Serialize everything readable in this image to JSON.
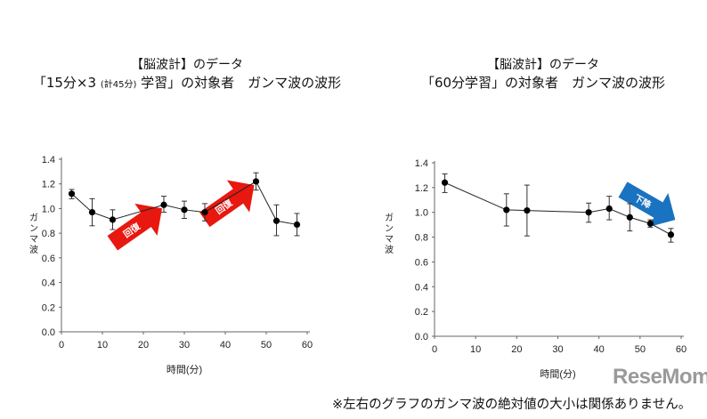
{
  "chart_data": [
    {
      "type": "line",
      "title_line1": "【脳波計】のデータ",
      "title_line2a": "「15分×3",
      "title_line2b": "(計45分)",
      "title_line2c": "学習」の対象者　ガンマ波の波形",
      "xlabel": "時間(分)",
      "ylabel": "ガンマ波",
      "xlim": [
        0,
        60
      ],
      "ylim": [
        0,
        1.4
      ],
      "xticks": [
        0,
        10,
        20,
        30,
        40,
        50,
        60
      ],
      "yticks": [
        "0.0",
        "0.2",
        "0.4",
        "0.6",
        "0.8",
        "1.0",
        "1.2",
        "1.4"
      ],
      "x": [
        2.5,
        7.5,
        12.5,
        25,
        30,
        35,
        47.5,
        52.5,
        57.5
      ],
      "y": [
        1.12,
        0.97,
        0.91,
        1.03,
        0.99,
        0.97,
        1.22,
        0.9,
        0.87
      ],
      "err_low": [
        1.08,
        0.86,
        0.83,
        0.97,
        0.92,
        0.9,
        1.15,
        0.78,
        0.78
      ],
      "err_high": [
        1.155,
        1.08,
        0.99,
        1.1,
        1.06,
        1.04,
        1.29,
        1.03,
        0.96
      ],
      "annotations": [
        {
          "text": "回復",
          "color": "#e8170f"
        },
        {
          "text": "回復",
          "color": "#e8170f"
        }
      ]
    },
    {
      "type": "line",
      "title_line1": "【脳波計】のデータ",
      "title_line2": "「60分学習」の対象者　ガンマ波の波形",
      "xlabel": "時間(分)",
      "ylabel": "ガンマ波",
      "xlim": [
        0,
        60
      ],
      "ylim": [
        0,
        1.4
      ],
      "xticks": [
        0,
        10,
        20,
        30,
        40,
        50,
        60
      ],
      "yticks": [
        "0.0",
        "0.2",
        "0.4",
        "0.6",
        "0.8",
        "1.0",
        "1.2",
        "1.4"
      ],
      "x": [
        2.5,
        17.5,
        22.5,
        37.5,
        42.5,
        47.5,
        52.5,
        57.5
      ],
      "y": [
        1.24,
        1.02,
        1.015,
        1.0,
        1.03,
        0.96,
        0.91,
        0.82
      ],
      "err_low": [
        1.16,
        0.89,
        0.81,
        0.92,
        0.94,
        0.85,
        0.88,
        0.76
      ],
      "err_high": [
        1.31,
        1.15,
        1.22,
        1.075,
        1.13,
        1.07,
        0.94,
        0.87
      ],
      "annotations": [
        {
          "text": "下降",
          "color": "#1a73c0"
        }
      ]
    }
  ],
  "footnote": "※左右のグラフのガンマ波の絶対値の大小は関係ありません。",
  "logo": "ReseMom"
}
